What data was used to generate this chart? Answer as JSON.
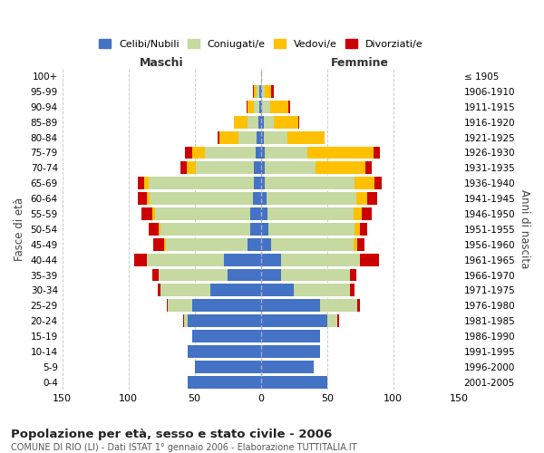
{
  "age_groups": [
    "0-4",
    "5-9",
    "10-14",
    "15-19",
    "20-24",
    "25-29",
    "30-34",
    "35-39",
    "40-44",
    "45-49",
    "50-54",
    "55-59",
    "60-64",
    "65-69",
    "70-74",
    "75-79",
    "80-84",
    "85-89",
    "90-94",
    "95-99",
    "100+"
  ],
  "birth_years": [
    "2001-2005",
    "1996-2000",
    "1991-1995",
    "1986-1990",
    "1981-1985",
    "1976-1980",
    "1971-1975",
    "1966-1970",
    "1961-1965",
    "1956-1960",
    "1951-1955",
    "1946-1950",
    "1941-1945",
    "1936-1940",
    "1931-1935",
    "1926-1930",
    "1921-1925",
    "1916-1920",
    "1911-1915",
    "1906-1910",
    "≤ 1905"
  ],
  "maschi": {
    "celibi": [
      55,
      50,
      55,
      52,
      55,
      52,
      38,
      25,
      28,
      10,
      8,
      8,
      6,
      5,
      5,
      4,
      3,
      2,
      1,
      1,
      0
    ],
    "coniugati": [
      0,
      0,
      0,
      0,
      3,
      18,
      38,
      52,
      58,
      62,
      68,
      72,
      78,
      80,
      44,
      38,
      14,
      8,
      4,
      2,
      0
    ],
    "vedovi": [
      0,
      0,
      0,
      0,
      0,
      0,
      0,
      0,
      0,
      1,
      1,
      2,
      2,
      3,
      7,
      10,
      14,
      10,
      5,
      2,
      0
    ],
    "divorziati": [
      0,
      0,
      0,
      0,
      1,
      1,
      2,
      5,
      10,
      8,
      8,
      8,
      7,
      5,
      5,
      5,
      2,
      0,
      1,
      1,
      0
    ]
  },
  "femmine": {
    "nubili": [
      50,
      40,
      45,
      45,
      50,
      45,
      25,
      15,
      15,
      8,
      6,
      5,
      4,
      3,
      3,
      3,
      2,
      2,
      1,
      1,
      0
    ],
    "coniugate": [
      0,
      0,
      0,
      0,
      8,
      28,
      42,
      52,
      60,
      62,
      65,
      65,
      68,
      68,
      38,
      32,
      18,
      8,
      6,
      2,
      0
    ],
    "vedove": [
      0,
      0,
      0,
      0,
      0,
      0,
      0,
      0,
      0,
      3,
      4,
      6,
      8,
      15,
      38,
      50,
      28,
      18,
      14,
      5,
      1
    ],
    "divorziate": [
      0,
      0,
      0,
      0,
      1,
      2,
      4,
      5,
      14,
      5,
      5,
      8,
      8,
      5,
      5,
      5,
      0,
      1,
      1,
      2,
      0
    ]
  },
  "colors": {
    "celibi": "#4472c4",
    "coniugati": "#c5d9a0",
    "vedovi": "#ffc000",
    "divorziati": "#cc0000"
  },
  "legend_labels": [
    "Celibi/Nubili",
    "Coniugati/e",
    "Vedovi/e",
    "Divorziati/e"
  ],
  "title": "Popolazione per età, sesso e stato civile - 2006",
  "subtitle": "COMUNE DI RIO (LI) - Dati ISTAT 1° gennaio 2006 - Elaborazione TUTTITALIA.IT",
  "xlabel_left": "Maschi",
  "xlabel_right": "Femmine",
  "ylabel_left": "Fasce di età",
  "ylabel_right": "Anni di nascita",
  "xlim": 150,
  "bg_color": "#ffffff",
  "grid_color": "#cccccc"
}
